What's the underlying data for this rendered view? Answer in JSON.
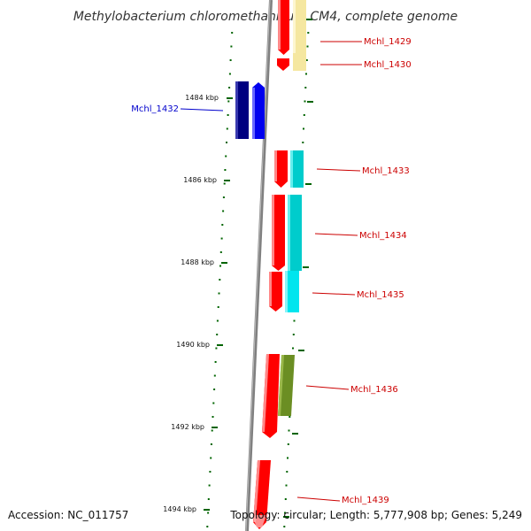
{
  "title": "Methylobacterium chloromethanicum CM4, complete genome",
  "footer": {
    "accession": "Accession: NC_011757",
    "summary": "Topology: circular; Length: 5,777,908 bp; Genes: 5,249"
  },
  "ticks": [
    {
      "label": "1484 kbp"
    },
    {
      "label": "1486 kbp"
    },
    {
      "label": "1488 kbp"
    },
    {
      "label": "1490 kbp"
    },
    {
      "label": "1492 kbp"
    },
    {
      "label": "1494 kbp"
    }
  ],
  "genes": [
    {
      "id": "Mchl_1429",
      "strand": "right",
      "color": "#ff0000",
      "partner_color": "#f5e7a0"
    },
    {
      "id": "Mchl_1430",
      "strand": "right",
      "color": "#ff0000",
      "partner_color": "#f5e7a0"
    },
    {
      "id": "Mchl_1432",
      "strand": "left",
      "color": "#0000ee",
      "partner_color": "#000080"
    },
    {
      "id": "Mchl_1433",
      "strand": "right",
      "color": "#ff0000",
      "partner_color": "#00cccc"
    },
    {
      "id": "Mchl_1434",
      "strand": "right",
      "color": "#ff0000",
      "partner_color": "#00cccc"
    },
    {
      "id": "Mchl_1435",
      "strand": "right",
      "color": "#ff0000",
      "partner_color": "#00e5ee"
    },
    {
      "id": "Mchl_1436",
      "strand": "right",
      "color": "#ff0000",
      "partner_color": "#6b8e23"
    },
    {
      "id": "Mchl_1439",
      "strand": "right",
      "color": "#ff0000",
      "partner_color": ""
    }
  ],
  "colors": {
    "label_forward": "#cc0000",
    "label_reverse": "#0000cc",
    "axis": "#808080",
    "dots": "#006400"
  }
}
